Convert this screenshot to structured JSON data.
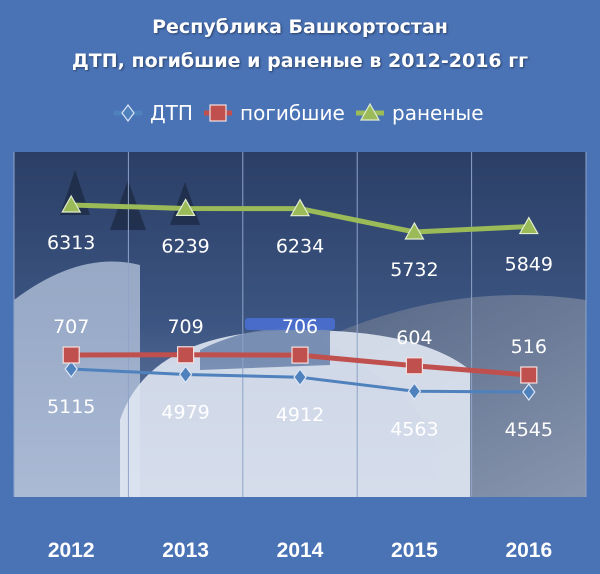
{
  "chart_data": {
    "type": "line",
    "title_lines": [
      "Республика Башкортостан",
      "ДТП, погибшие и раненые  в 2012-2016 гг"
    ],
    "categories": [
      "2012",
      "2013",
      "2014",
      "2015",
      "2016"
    ],
    "series": [
      {
        "name": "ДТП",
        "values": [
          5115,
          4979,
          4912,
          4563,
          4545
        ],
        "color": "#4f81bd",
        "marker": "diamond"
      },
      {
        "name": "погибшие",
        "values": [
          707,
          709,
          706,
          604,
          516
        ],
        "color": "#c0504d",
        "marker": "square"
      },
      {
        "name": "раненые",
        "values": [
          6313,
          6239,
          6234,
          5732,
          5849
        ],
        "color": "#9bbb59",
        "marker": "triangle"
      }
    ],
    "legend_position": "top",
    "grid": "vertical",
    "background": "winter road with police car photo"
  }
}
